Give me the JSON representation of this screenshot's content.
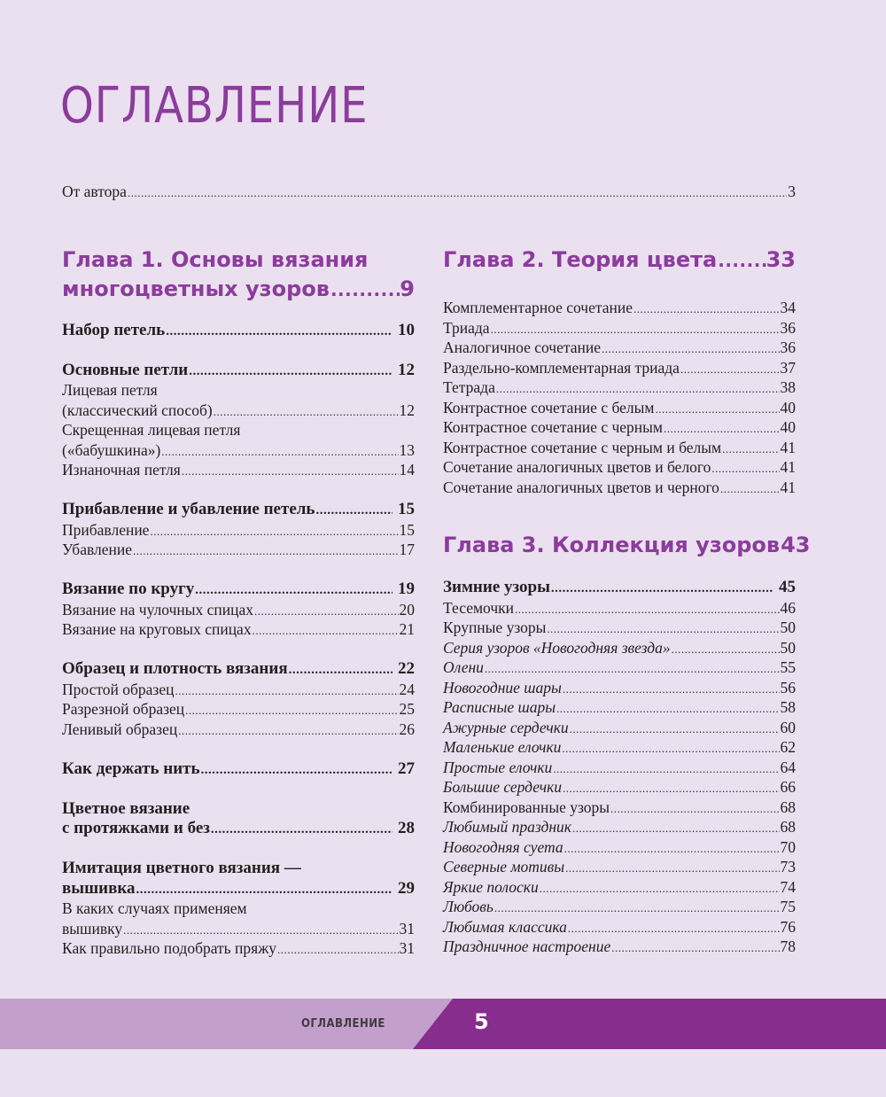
{
  "page_title": "ОГЛАВЛЕНИЕ",
  "intro": {
    "title": "От автора",
    "page": "3"
  },
  "left": {
    "chapter": {
      "line1": "Глава 1. Основы вязания",
      "line2": "многоцветных узоров",
      "page": "9"
    },
    "groups": [
      [
        {
          "title": "Набор петель",
          "page": "10",
          "bold": true
        }
      ],
      [
        {
          "title": "Основные петли",
          "page": "12",
          "bold": true
        },
        {
          "pre": "Лицевая петля",
          "title": "(классический способ)",
          "page": "12"
        },
        {
          "pre": "Скрещенная лицевая петля",
          "title": "(«бабушкина»)",
          "page": "13"
        },
        {
          "title": "Изнаночная петля",
          "page": "14"
        }
      ],
      [
        {
          "title": "Прибавление и убавление петель",
          "page": "15",
          "bold": true
        },
        {
          "title": "Прибавление",
          "page": "15"
        },
        {
          "title": "Убавление",
          "page": "17"
        }
      ],
      [
        {
          "title": "Вязание по кругу",
          "page": "19",
          "bold": true
        },
        {
          "title": "Вязание на чулочных спицах",
          "page": "20"
        },
        {
          "title": "Вязание на круговых спицах",
          "page": "21"
        }
      ],
      [
        {
          "title": "Образец и плотность вязания",
          "page": "22",
          "bold": true
        },
        {
          "title": "Простой образец",
          "page": "24"
        },
        {
          "title": "Разрезной образец",
          "page": "25"
        },
        {
          "title": "Ленивый образец",
          "page": "26"
        }
      ],
      [
        {
          "title": "Как держать нить",
          "page": "27",
          "bold": true
        }
      ],
      [
        {
          "pre": "Цветное вязание",
          "title": "с протяжками и без",
          "page": "28",
          "bold": true
        }
      ],
      [
        {
          "pre": "Имитация цветного вязания —",
          "title": "вышивка",
          "page": "29",
          "bold": true
        },
        {
          "pre": "В каких случаях применяем",
          "title": "вышивку",
          "page": "31"
        },
        {
          "title": "Как правильно подобрать пряжу",
          "page": "31"
        }
      ]
    ]
  },
  "right": {
    "chapter2": {
      "line1": "Глава 2. Теория цвета",
      "page": "33"
    },
    "entries2": [
      {
        "title": "Комплементарное сочетание",
        "page": "34"
      },
      {
        "title": "Триада",
        "page": "36"
      },
      {
        "title": "Аналогичное сочетание",
        "page": "36"
      },
      {
        "title": "Раздельно-комплементарная триада",
        "page": "37"
      },
      {
        "title": "Тетрада",
        "page": "38"
      },
      {
        "title": "Контрастное сочетание с белым",
        "page": "40"
      },
      {
        "title": "Контрастное сочетание с черным",
        "page": "40"
      },
      {
        "title": "Контрастное сочетание с черным и белым",
        "page": "41"
      },
      {
        "title": "Сочетание аналогичных цветов и белого",
        "page": "41"
      },
      {
        "title": "Сочетание аналогичных цветов и черного",
        "page": "41"
      }
    ],
    "chapter3": {
      "line1": "Глава 3. Коллекция узоров",
      "page": "43"
    },
    "entries3": [
      {
        "title": "Зимние узоры",
        "page": "45",
        "bold": true
      },
      {
        "title": "Тесемочки",
        "page": "46"
      },
      {
        "title": "Крупные узоры",
        "page": "50"
      },
      {
        "title": "Серия узоров «Новогодняя звезда»",
        "page": "50",
        "italic": true
      },
      {
        "title": "Олени",
        "page": "55",
        "italic": true
      },
      {
        "title": "Новогодние шары",
        "page": "56",
        "italic": true
      },
      {
        "title": "Расписные шары",
        "page": "58",
        "italic": true
      },
      {
        "title": "Ажурные сердечки",
        "page": "60",
        "italic": true
      },
      {
        "title": "Маленькие елочки",
        "page": "62",
        "italic": true
      },
      {
        "title": "Простые елочки",
        "page": "64",
        "italic": true
      },
      {
        "title": "Большие сердечки",
        "page": "66",
        "italic": true
      },
      {
        "title": "Комбинированные узоры",
        "page": "68"
      },
      {
        "title": "Любимый праздник",
        "page": "68",
        "italic": true
      },
      {
        "title": "Новогодняя суета",
        "page": "70",
        "italic": true
      },
      {
        "title": "Северные мотивы",
        "page": "73",
        "italic": true
      },
      {
        "title": "Яркие полоски",
        "page": "74",
        "italic": true
      },
      {
        "title": "Любовь",
        "page": "75",
        "italic": true
      },
      {
        "title": "Любимая классика",
        "page": "76",
        "italic": true
      },
      {
        "title": "Праздничное настроение",
        "page": "78",
        "italic": true
      }
    ]
  },
  "footer": {
    "section_label": "ОГЛАВЛЕНИЕ",
    "page_number": "5"
  },
  "colors": {
    "background": "#ebe0ef",
    "accent": "#8b3c9c",
    "footer_light": "#c39fcb",
    "footer_dark": "#862d8e"
  }
}
